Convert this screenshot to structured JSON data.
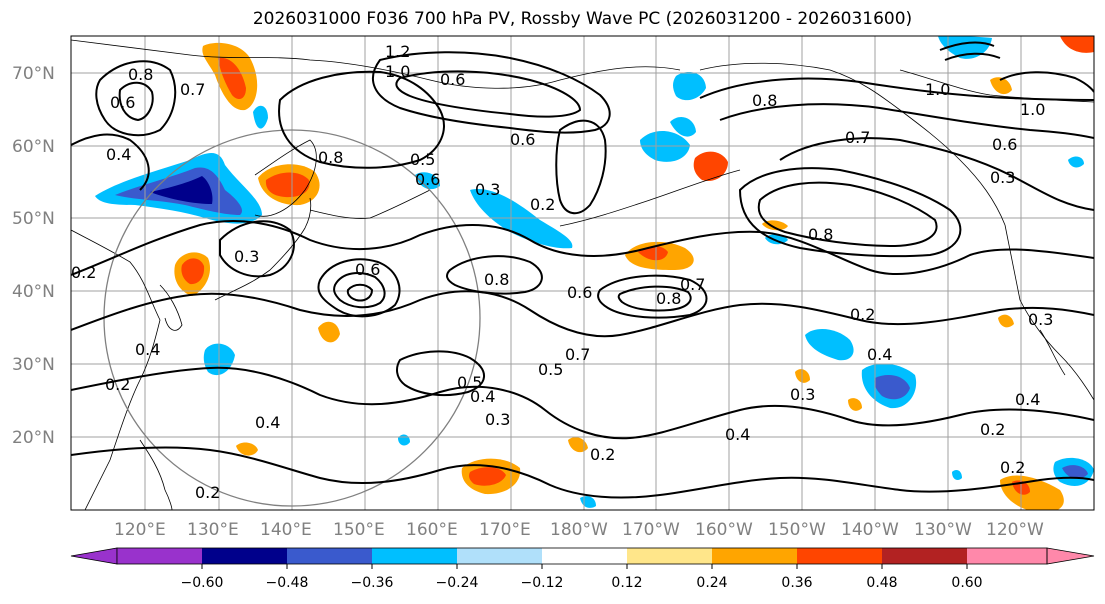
{
  "title": "2026031000 F036 700 hPa PV, Rossby Wave PC (2026031200 - 2026031600)",
  "lat_labels": [
    "70°N",
    "60°N",
    "50°N",
    "40°N",
    "30°N",
    "20°N"
  ],
  "lon_labels": [
    "120°E",
    "130°E",
    "140°E",
    "150°E",
    "160°E",
    "170°E",
    "180°W",
    "170°W",
    "160°W",
    "150°W",
    "140°W",
    "130°W",
    "120°W"
  ],
  "contour_labels": [
    "1.2",
    "1.0",
    "1.0",
    "1.0",
    "0.6",
    "0.8",
    "0.7",
    "0.8",
    "0.6",
    "0.7",
    "0.6",
    "0.6",
    "0.4",
    "0.8",
    "0.5",
    "0.6",
    "0.3",
    "0.3",
    "0.2",
    "0.6",
    "0.8",
    "0.6",
    "0.8",
    "0.7",
    "0.8",
    "0.3",
    "0.2",
    "0.2",
    "0.3",
    "0.4",
    "0.2",
    "0.4",
    "0.5",
    "0.4",
    "0.3",
    "0.5",
    "0.7",
    "0.3",
    "0.4",
    "0.2",
    "0.2",
    "0.4",
    "0.2",
    "0.4",
    "0.2"
  ],
  "colorbar": {
    "tick_labels": [
      "−0.60",
      "−0.48",
      "−0.36",
      "−0.24",
      "−0.12",
      "0.12",
      "0.24",
      "0.36",
      "0.48",
      "0.60"
    ],
    "colors": [
      "#9932cc",
      "#00008b",
      "#3a5acd",
      "#00bfff",
      "#b0e0fa",
      "#ffffff",
      "#ffe68a",
      "#ffa500",
      "#ff4500",
      "#b22222",
      "#ff88aa"
    ]
  },
  "palette": {
    "purple": "#9932cc",
    "navy": "#00008b",
    "royal": "#3a5acd",
    "sky": "#00bfff",
    "light": "#b0e0fa",
    "yellow": "#ffe68a",
    "orange": "#ffa500",
    "red": "#ff4500",
    "darkred": "#b22222",
    "pink": "#ff88aa"
  }
}
